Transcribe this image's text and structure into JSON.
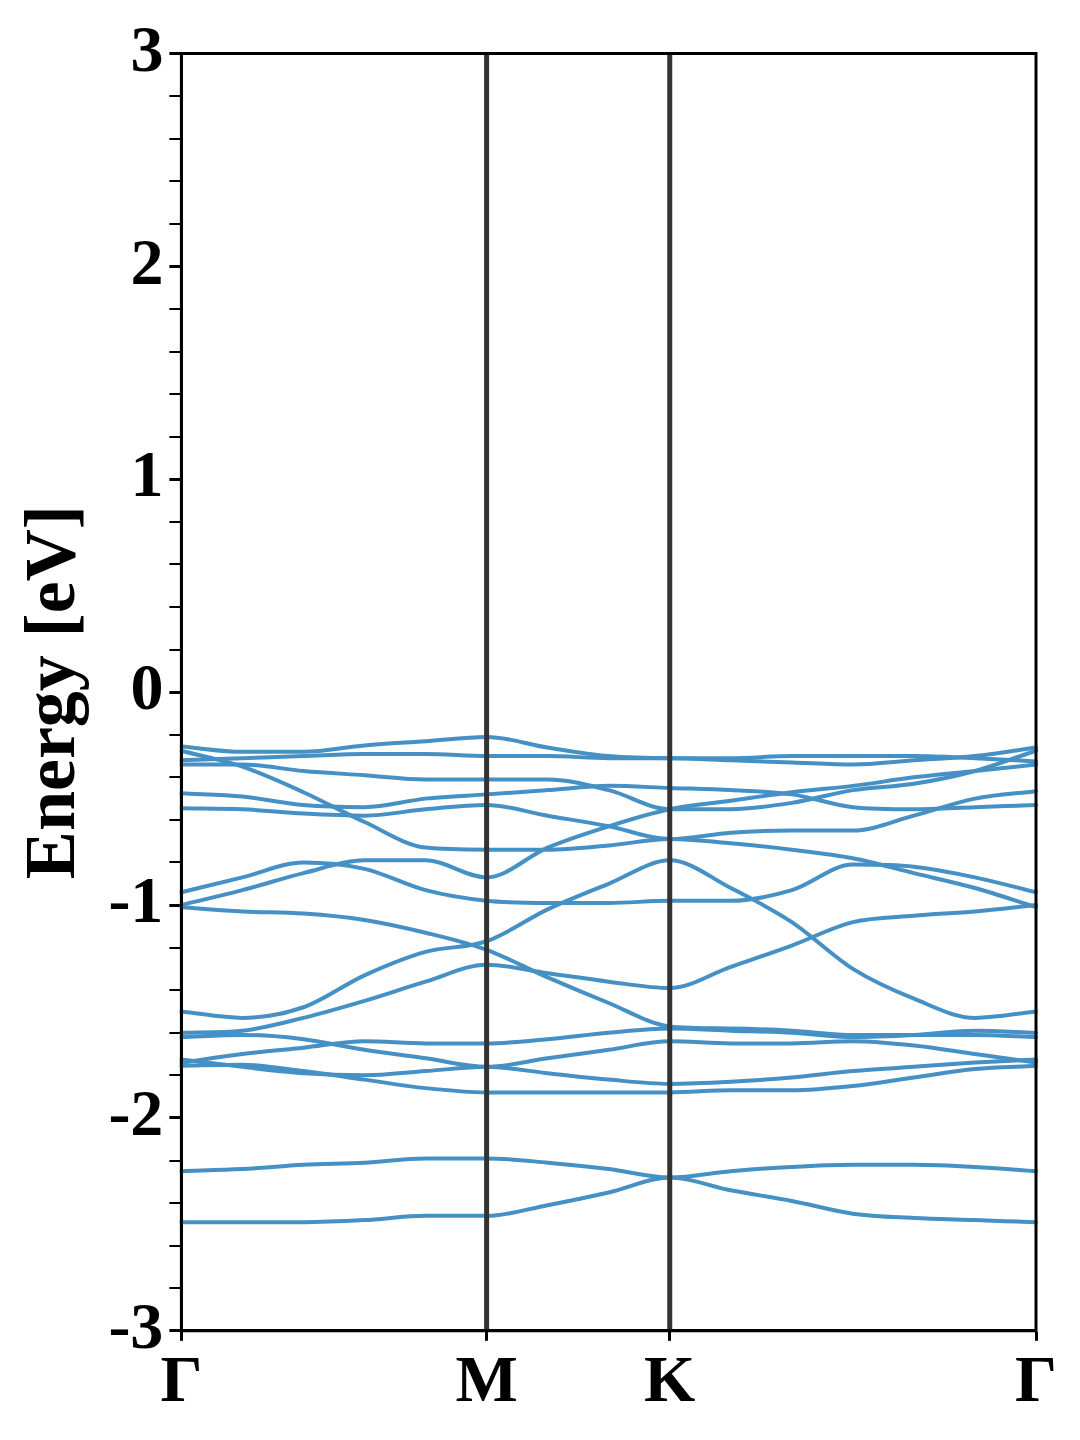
{
  "chart_data": {
    "type": "line",
    "ylabel": "Energy [eV]",
    "categories": [
      "Γ",
      null,
      null,
      null,
      null,
      "M",
      null,
      null,
      "K",
      null,
      null,
      null,
      null,
      null,
      "Γ"
    ],
    "ylim": [
      -3,
      3
    ],
    "yticks": [
      -3,
      {
        "value": -2.8,
        "label": null
      },
      {
        "value": -2.6,
        "label": null
      },
      {
        "value": -2.4,
        "label": null
      },
      {
        "value": -2.2,
        "label": null
      },
      -2,
      {
        "value": -1.8,
        "label": null
      },
      {
        "value": -1.6,
        "label": null
      },
      {
        "value": -1.4,
        "label": null
      },
      {
        "value": -1.2,
        "label": null
      },
      -1,
      {
        "value": -0.8,
        "label": null
      },
      {
        "value": -0.6,
        "label": null
      },
      {
        "value": -0.4,
        "label": null
      },
      {
        "value": -0.2,
        "label": null
      },
      0,
      {
        "value": 0.2,
        "label": null
      },
      {
        "value": 0.4,
        "label": null
      },
      {
        "value": 0.6,
        "label": null
      },
      {
        "value": 0.8,
        "label": null
      },
      1,
      {
        "value": 1.2,
        "label": null
      },
      {
        "value": 1.4,
        "label": null
      },
      {
        "value": 1.6,
        "label": null
      },
      {
        "value": 1.8,
        "label": null
      },
      2,
      {
        "value": 2.2,
        "label": null
      },
      {
        "value": 2.4,
        "label": null
      },
      {
        "value": 2.6,
        "label": null
      },
      {
        "value": 2.8,
        "label": null
      },
      3
    ],
    "grid": false,
    "legend": false,
    "marker": "none",
    "line_style": "solid",
    "ref_lines": [
      {
        "axis": "x",
        "value": "M",
        "color": "#333333"
      },
      {
        "axis": "x",
        "value": "K",
        "color": "#333333"
      }
    ],
    "series": [
      {
        "color": "#4590c4",
        "values": [
          -0.255,
          -0.28,
          -0.28,
          -0.25,
          -0.23,
          -0.21,
          -0.26,
          -0.3,
          -0.31,
          -0.31,
          -0.3,
          -0.3,
          -0.3,
          -0.31,
          -0.325
        ]
      },
      {
        "color": "#4590c4",
        "values": [
          -0.275,
          -0.35,
          -0.47,
          -0.61,
          -0.73,
          -0.74,
          -0.74,
          -0.72,
          -0.69,
          -0.71,
          -0.74,
          -0.78,
          -0.85,
          -0.92,
          -1.01
        ]
      },
      {
        "color": "#4590c4",
        "values": [
          -0.32,
          -0.31,
          -0.3,
          -0.29,
          -0.29,
          -0.3,
          -0.3,
          -0.31,
          -0.31,
          -0.32,
          -0.33,
          -0.34,
          -0.32,
          -0.3,
          -0.26
        ]
      },
      {
        "color": "#4590c4",
        "values": [
          -0.34,
          -0.34,
          -0.37,
          -0.39,
          -0.41,
          -0.41,
          -0.41,
          -0.46,
          -0.55,
          -0.55,
          -0.52,
          -0.46,
          -0.43,
          -0.37,
          -0.275
        ]
      },
      {
        "color": "#4590c4",
        "values": [
          -0.475,
          -0.49,
          -0.53,
          -0.54,
          -0.5,
          -0.48,
          -0.46,
          -0.44,
          -0.45,
          -0.46,
          -0.48,
          -0.54,
          -0.55,
          -0.54,
          -0.53
        ]
      },
      {
        "color": "#4590c4",
        "values": [
          -0.545,
          -0.55,
          -0.57,
          -0.58,
          -0.55,
          -0.53,
          -0.58,
          -0.63,
          -0.69,
          -0.66,
          -0.65,
          -0.65,
          -0.58,
          -0.5,
          -0.465
        ]
      },
      {
        "color": "#4590c4",
        "values": [
          -0.94,
          -0.87,
          -0.8,
          -0.83,
          -0.93,
          -0.98,
          -0.99,
          -0.99,
          -0.98,
          -0.98,
          -0.93,
          -0.81,
          -0.82,
          -0.87,
          -0.94
        ]
      },
      {
        "color": "#4590c4",
        "values": [
          -1.0,
          -0.93,
          -0.85,
          -0.79,
          -0.79,
          -0.87,
          -0.73,
          -0.63,
          -0.55,
          -0.51,
          -0.47,
          -0.44,
          -0.4,
          -0.37,
          -0.34
        ]
      },
      {
        "color": "#4590c4",
        "values": [
          -1.01,
          -1.03,
          -1.04,
          -1.07,
          -1.13,
          -1.21,
          -1.34,
          -1.46,
          -1.57,
          -1.58,
          -1.59,
          -1.61,
          -1.61,
          -1.61,
          -1.62
        ]
      },
      {
        "color": "#4590c4",
        "values": [
          -1.5,
          -1.53,
          -1.48,
          -1.33,
          -1.22,
          -1.17,
          -1.02,
          -0.9,
          -0.79,
          -0.92,
          -1.08,
          -1.3,
          -1.44,
          -1.53,
          -1.5
        ]
      },
      {
        "color": "#4590c4",
        "values": [
          -1.6,
          -1.59,
          -1.53,
          -1.45,
          -1.36,
          -1.28,
          -1.32,
          -1.36,
          -1.39,
          -1.29,
          -1.19,
          -1.08,
          -1.05,
          -1.03,
          -1.0
        ]
      },
      {
        "color": "#4590c4",
        "values": [
          -1.62,
          -1.61,
          -1.63,
          -1.68,
          -1.72,
          -1.76,
          -1.72,
          -1.68,
          -1.64,
          -1.65,
          -1.65,
          -1.64,
          -1.66,
          -1.7,
          -1.74
        ]
      },
      {
        "color": "#4590c4",
        "values": [
          -1.74,
          -1.7,
          -1.67,
          -1.64,
          -1.65,
          -1.65,
          -1.63,
          -1.6,
          -1.58,
          -1.59,
          -1.6,
          -1.62,
          -1.61,
          -1.59,
          -1.6
        ]
      },
      {
        "color": "#4590c4",
        "values": [
          -1.725,
          -1.76,
          -1.79,
          -1.8,
          -1.78,
          -1.76,
          -1.79,
          -1.82,
          -1.84,
          -1.83,
          -1.81,
          -1.78,
          -1.76,
          -1.74,
          -1.725
        ]
      },
      {
        "color": "#4590c4",
        "values": [
          -1.755,
          -1.75,
          -1.78,
          -1.82,
          -1.86,
          -1.88,
          -1.88,
          -1.88,
          -1.88,
          -1.87,
          -1.87,
          -1.85,
          -1.81,
          -1.77,
          -1.755
        ]
      },
      {
        "color": "#4590c4",
        "values": [
          -2.25,
          -2.24,
          -2.22,
          -2.21,
          -2.19,
          -2.19,
          -2.21,
          -2.24,
          -2.28,
          -2.25,
          -2.23,
          -2.22,
          -2.22,
          -2.23,
          -2.25
        ]
      },
      {
        "color": "#4590c4",
        "values": [
          -2.49,
          -2.49,
          -2.49,
          -2.48,
          -2.46,
          -2.46,
          -2.41,
          -2.35,
          -2.28,
          -2.34,
          -2.39,
          -2.45,
          -2.47,
          -2.48,
          -2.49
        ]
      }
    ]
  }
}
